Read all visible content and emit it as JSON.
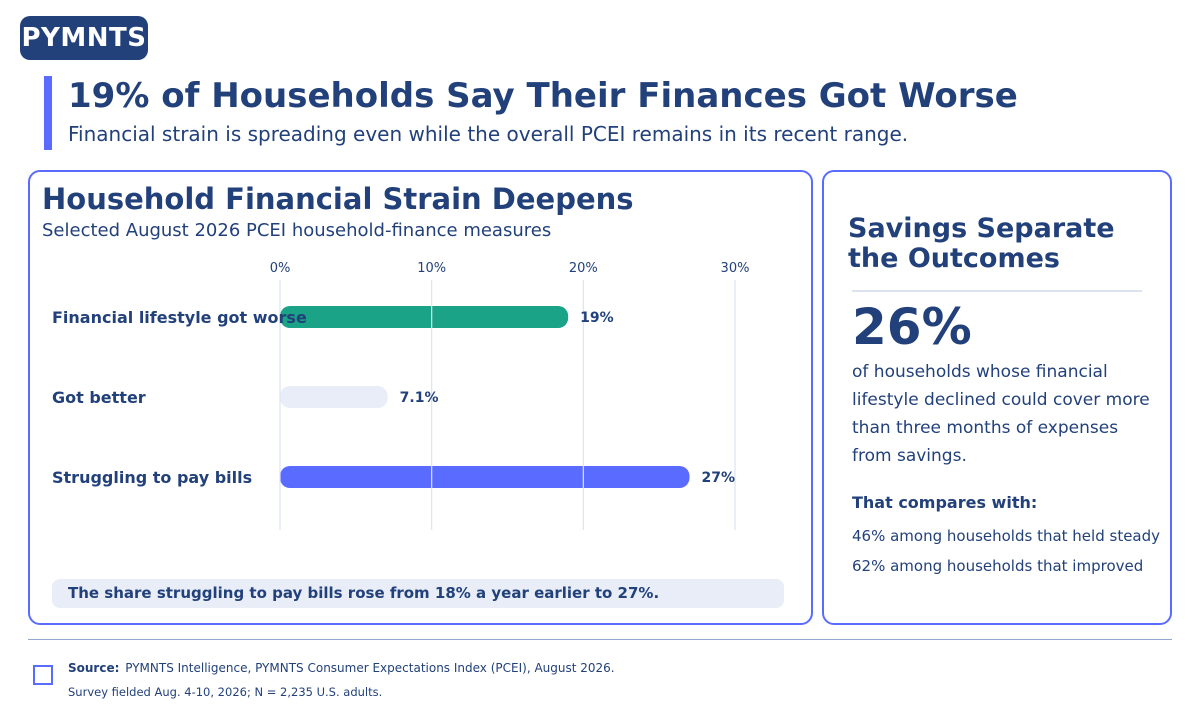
{
  "brand": {
    "logo_text": "PYMNTS"
  },
  "header": {
    "headline": "19% of Households Say Their Finances Got Worse",
    "subhead": "Financial strain is spreading even while the overall PCEI remains in its recent range."
  },
  "chart_data": {
    "type": "bar",
    "orientation": "horizontal",
    "title": "Household Financial Strain Deepens",
    "subtitle": "Selected August 2026 PCEI household-finance measures",
    "categories": [
      "Financial lifestyle got worse",
      "Got better",
      "Struggling to pay bills"
    ],
    "values": [
      19,
      7.1,
      27
    ],
    "value_labels": [
      "19%",
      "7.1%",
      "27%"
    ],
    "colors": [
      "#1aa387",
      "#e8edf8",
      "#5a6cff"
    ],
    "xticks": [
      0,
      10,
      20,
      30
    ],
    "xtick_labels": [
      "0%",
      "10%",
      "20%",
      "30%"
    ],
    "xlim": [
      0,
      30
    ],
    "grid": true,
    "note": "The share struggling to pay bills rose from 18% a year earlier to 27%."
  },
  "sidebar": {
    "title": "Savings Separate the Outcomes",
    "big_stat": "26%",
    "description": "of households whose financial lifestyle declined could cover more than three months of expenses from savings.",
    "compare_heading": "That compares with:",
    "compare": [
      "46%  among households that held steady",
      "62%  among households that improved"
    ]
  },
  "footer": {
    "source_label": "Source:",
    "source_text": "PYMNTS Intelligence, PYMNTS Consumer Expectations Index (PCEI), August 2026.",
    "survey_text": "Survey fielded Aug. 4-10, 2026; N = 2,235 U.S. adults."
  }
}
